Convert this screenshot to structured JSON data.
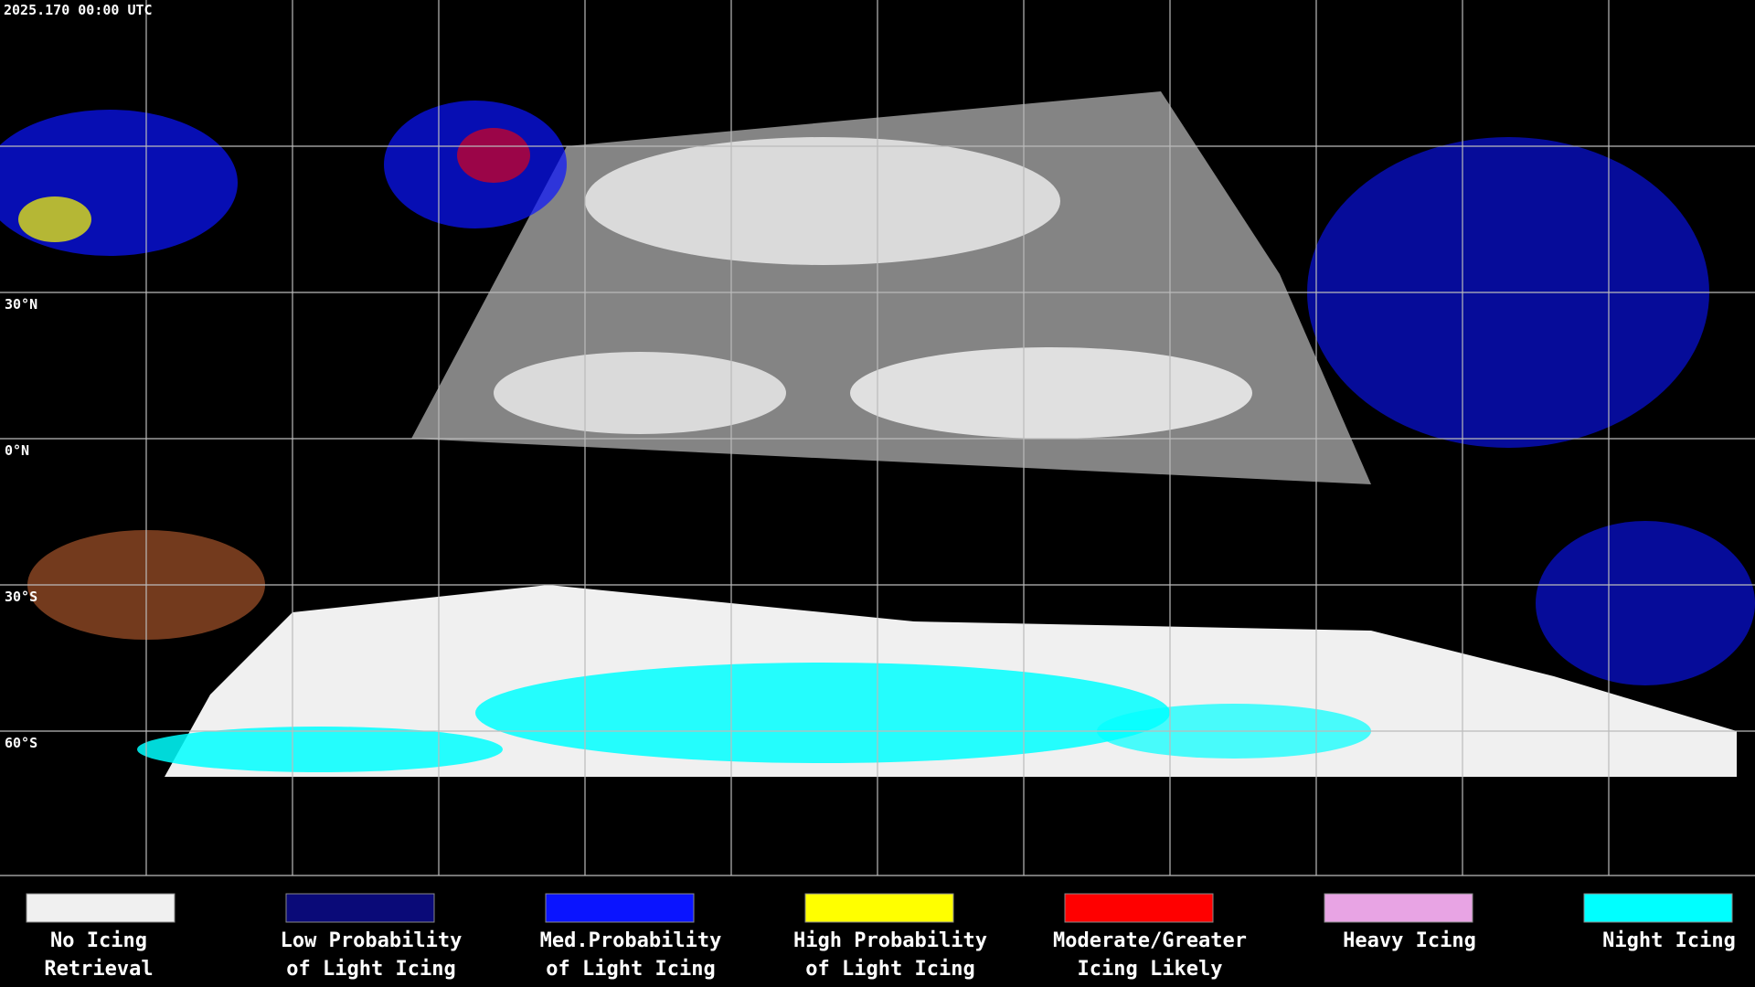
{
  "header": {
    "timestamp": "2025.170 00:00 UTC"
  },
  "map": {
    "lat_labels": [
      "30°N",
      "0°N",
      "30°S",
      "60°S"
    ]
  },
  "legend": {
    "items": [
      {
        "label": [
          "No Icing",
          "Retrieval"
        ],
        "color": "#f0f0f0"
      },
      {
        "label": [
          "Low Probability",
          "of Light Icing"
        ],
        "color": "#0a0a78"
      },
      {
        "label": [
          "Med.Probability",
          "of Light Icing"
        ],
        "color": "#0a14ff"
      },
      {
        "label": [
          "High Probability",
          "of Light Icing"
        ],
        "color": "#ffff00"
      },
      {
        "label": [
          "Moderate/Greater",
          "Icing Likely"
        ],
        "color": "#ff0000"
      },
      {
        "label": [
          "Heavy Icing"
        ],
        "color": "#e8a4e4"
      },
      {
        "label": [
          "Night Icing"
        ],
        "color": "#00ffff"
      }
    ]
  }
}
